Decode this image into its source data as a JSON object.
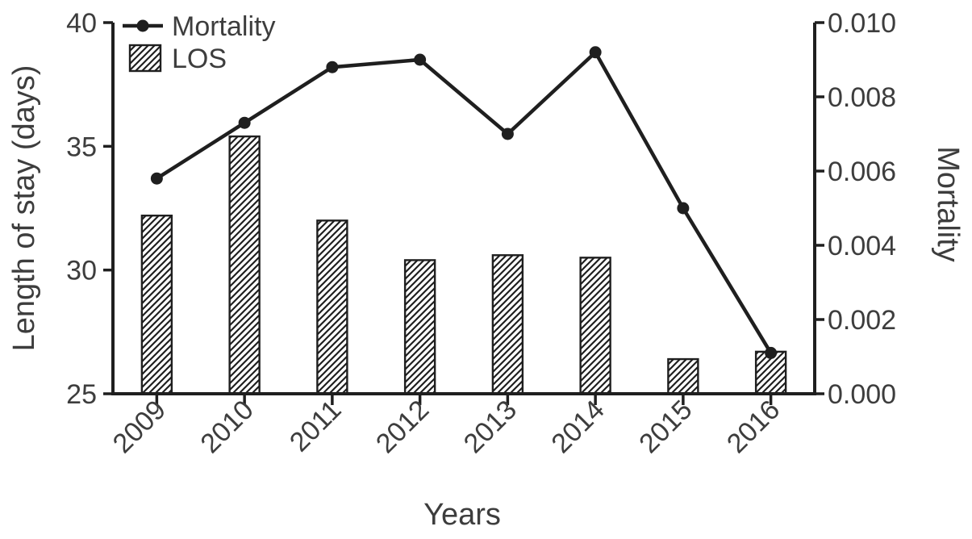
{
  "legend": {
    "mortality_label": "Mortality",
    "los_label": "LOS"
  },
  "colors": {
    "ink": "#1f1f1f",
    "text": "#3d3d3d",
    "background": "#ffffff"
  },
  "chart_data": {
    "type": "bar+line",
    "title": "",
    "xlabel": "Years",
    "ylabel_left": "Length of stay (days)",
    "ylabel_right": "Mortality",
    "grid": false,
    "legend_position": "top-left",
    "categories": [
      "2009",
      "2010",
      "2011",
      "2012",
      "2013",
      "2014",
      "2015",
      "2016"
    ],
    "left_ylim": [
      25,
      40
    ],
    "right_ylim": [
      0,
      0.01
    ],
    "left_ticks": [
      25,
      30,
      35,
      40
    ],
    "left_tick_labels": [
      "25",
      "30",
      "35",
      "40"
    ],
    "right_ticks": [
      0.0,
      0.002,
      0.004,
      0.006,
      0.008,
      0.01
    ],
    "right_tick_labels": [
      "0.000",
      "0.002",
      "0.004",
      "0.006",
      "0.008",
      "0.010"
    ],
    "series": [
      {
        "name": "LOS",
        "type": "bar",
        "axis": "left",
        "style": "white-diagonal-hatch",
        "values": [
          32.2,
          35.4,
          32.0,
          30.4,
          30.6,
          30.5,
          26.4,
          26.7
        ]
      },
      {
        "name": "Mortality",
        "type": "line",
        "axis": "right",
        "style": "black-line-filled-circles",
        "values": [
          0.0058,
          0.0073,
          0.0088,
          0.009,
          0.007,
          0.0092,
          0.005,
          0.0011
        ]
      }
    ]
  }
}
